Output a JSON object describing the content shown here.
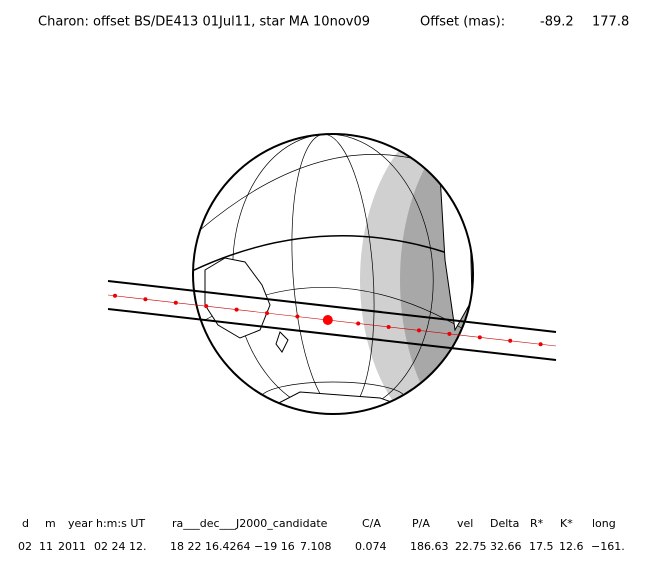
{
  "header": {
    "title": "Charon: offset BS/DE413 01Jul11, star MA 10nov09",
    "offset_label": "Offset (mas):",
    "offset_values": [
      "-89.2",
      "177.8"
    ]
  },
  "table": {
    "columns": [
      "d",
      "m",
      "year",
      "h:m:s UT",
      "ra___dec___J2000_candidate",
      "C/A",
      "P/A",
      "vel",
      "Delta",
      "R*",
      "K*",
      "long"
    ],
    "rows": [
      [
        "02",
        "11",
        "2011",
        "02 24 12.",
        "18 22 16.4264",
        "−19 16",
        "7.108",
        "0.074",
        "186.63",
        "22.75",
        "32.66",
        "17.5",
        "12.6",
        "−161."
      ]
    ]
  }
}
